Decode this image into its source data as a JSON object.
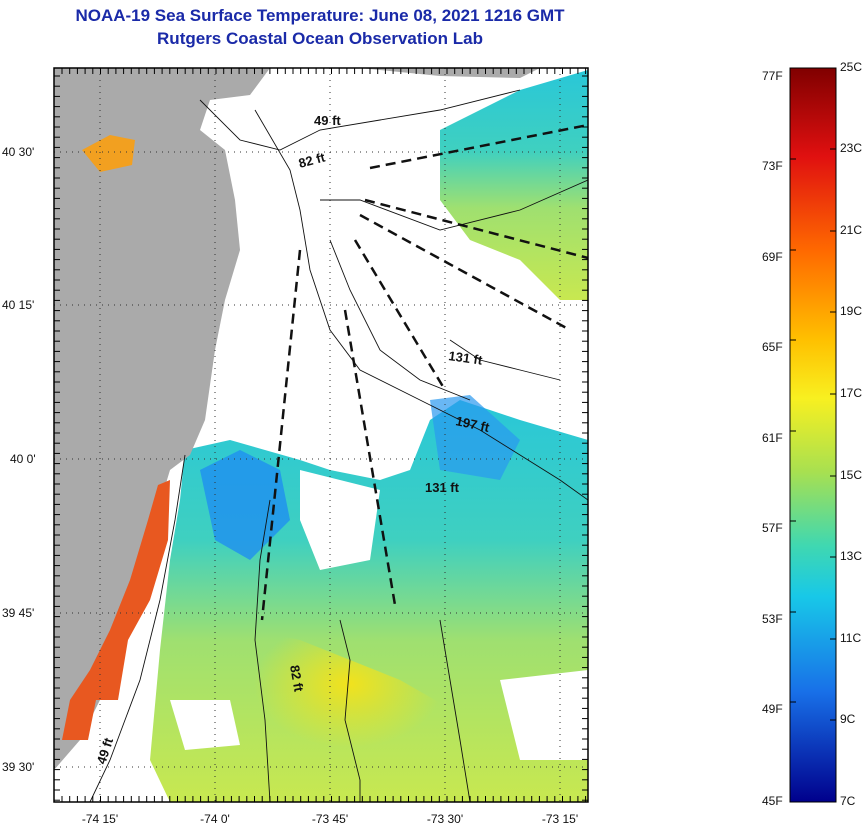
{
  "title": {
    "line1": "NOAA-19 Sea Surface Temperature:  June 08, 2021 1216 GMT",
    "line2": "Rutgers Coastal Ocean Observation Lab"
  },
  "axes": {
    "lat_labels": [
      "40 30'",
      "40 15'",
      "40 0'",
      "39 45'",
      "39 30'"
    ],
    "lon_labels": [
      "-74 15'",
      "-74 0'",
      "-73 45'",
      "-73 30'",
      "-73 15'"
    ]
  },
  "depth_labels": [
    "49 ft",
    "82 ft",
    "131 ft",
    "197 ft",
    "131 ft",
    "82 ft",
    "49 ft"
  ],
  "colorbar": {
    "fahrenheit": [
      "77F",
      "73F",
      "69F",
      "65F",
      "61F",
      "57F",
      "53F",
      "49F",
      "45F"
    ],
    "celsius": [
      "25C",
      "23C",
      "21C",
      "19C",
      "17C",
      "15C",
      "13C",
      "11C",
      "9C",
      "7C"
    ]
  },
  "colors": {
    "title": "#1a2aa8",
    "land": "#aaaaaa",
    "cloud": "#ffffff"
  }
}
